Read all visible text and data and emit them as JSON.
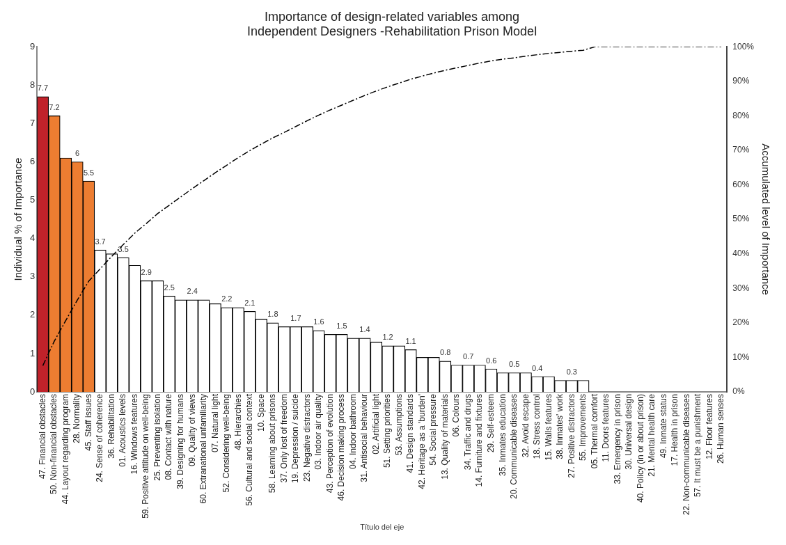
{
  "chart_data": {
    "type": "bar",
    "title": "Importance of design-related variables among\nIndependent Designers -Rehabilitation Prison Model",
    "xlabel": "Título del eje",
    "ylabel": "Individual % of Importance",
    "y2label": "Accumulated level of Importance",
    "categories": [
      "47. Financial obstacles",
      "50. Non-financial obstacles",
      "44. Layout regarding program",
      "28. Normality",
      "45. Staff issues",
      "24. Sense of coherence",
      "36. Rehabilitation",
      "01. Acoustics levels",
      "16. Windows features",
      "59. Positive attitude on well-being",
      "25. Preventing isolation",
      "08. Contact with nature",
      "39. Designing for humans",
      "09. Quality of views",
      "60. Extranational unfamiliarity",
      "07. Natural light",
      "52. Considering well-being",
      "48. Hierarchies",
      "56. Cultural and social context",
      "10. Space",
      "58. Learning about prisons",
      "37. Only lost of freedom",
      "19. Depression / suicide",
      "23. Negative distractors",
      "03. Indoor air quality",
      "43. Perception of evolution",
      "46. Decision making process",
      "04. Indoor bathroom",
      "31. Antisocial behaviour",
      "02. Artificial light",
      "51. Setting priorities",
      "53. Assumptions",
      "41. Design standards",
      "42. Heritage as a 'burden'",
      "54. Social pressure",
      "13. Quality of materials",
      "06. Colours",
      "34. Traffic and drugs",
      "14. Furniture and fixtures",
      "29. Self-esteem",
      "35. Inmates education",
      "20. Communicable diseases",
      "32. Avoid escape",
      "18. Stress control",
      "15. Walls features",
      "38. Inmates' work",
      "27. Positive distractors",
      "55. Improvements",
      "05. Thermal comfort",
      "11. Doors features",
      "33. Emergency in prison",
      "30. Universal design",
      "40. Policy (in or about prison)",
      "21. Mental health care",
      "49. Inmate status",
      "17. Health in prison",
      "22. Non-communicable diseases",
      "57. It must be a punishment",
      "12. Floor features",
      "26. Human senses"
    ],
    "series": [
      {
        "colors": [
          "#c0222a",
          "#ed7d31",
          "#ed7d31",
          "#ed7d31",
          "#ed7d31",
          "#ffffff",
          "#ffffff",
          "#ffffff",
          "#ffffff",
          "#ffffff",
          "#ffffff",
          "#ffffff",
          "#ffffff",
          "#ffffff",
          "#ffffff",
          "#ffffff",
          "#ffffff",
          "#ffffff",
          "#ffffff",
          "#ffffff",
          "#ffffff",
          "#ffffff",
          "#ffffff",
          "#ffffff",
          "#ffffff",
          "#ffffff",
          "#ffffff",
          "#ffffff",
          "#ffffff",
          "#ffffff",
          "#ffffff",
          "#ffffff",
          "#ffffff",
          "#ffffff",
          "#ffffff",
          "#ffffff",
          "#ffffff",
          "#ffffff",
          "#ffffff",
          "#ffffff",
          "#ffffff",
          "#ffffff",
          "#ffffff",
          "#ffffff",
          "#ffffff",
          "#ffffff",
          "#ffffff",
          "#ffffff",
          "#ffffff",
          "#ffffff",
          "#ffffff",
          "#ffffff",
          "#ffffff",
          "#ffffff",
          "#ffffff",
          "#ffffff",
          "#ffffff",
          "#ffffff",
          "#ffffff",
          "#ffffff"
        ],
        "values": [
          7.7,
          7.2,
          6.1,
          6.0,
          5.5,
          3.7,
          3.6,
          3.5,
          3.3,
          2.9,
          2.9,
          2.5,
          2.4,
          2.4,
          2.4,
          2.3,
          2.2,
          2.2,
          2.1,
          1.9,
          1.8,
          1.7,
          1.7,
          1.7,
          1.6,
          1.5,
          1.5,
          1.4,
          1.4,
          1.3,
          1.2,
          1.2,
          1.1,
          0.9,
          0.9,
          0.8,
          0.7,
          0.7,
          0.7,
          0.6,
          0.5,
          0.5,
          0.5,
          0.4,
          0.4,
          0.3,
          0.3,
          0.3,
          0,
          0,
          0,
          0,
          0,
          0,
          0,
          0,
          0,
          0,
          0,
          0
        ],
        "value_labels": [
          "7.7",
          "7.2",
          null,
          "6",
          "5.5",
          "3.7",
          null,
          "3.5",
          null,
          "2.9",
          null,
          "2.5",
          null,
          "2.4",
          null,
          null,
          "2.2",
          null,
          "2.1",
          null,
          "1.8",
          null,
          "1.7",
          null,
          "1.6",
          null,
          "1.5",
          null,
          "1.4",
          null,
          "1.2",
          null,
          "1.1",
          null,
          null,
          "0.8",
          null,
          "0.7",
          null,
          "0.6",
          null,
          "0.5",
          null,
          "0.4",
          null,
          null,
          "0.3",
          null,
          null,
          null,
          null,
          null,
          null,
          null,
          null,
          null,
          null,
          null,
          null,
          null
        ]
      },
      {
        "type": "line",
        "axis": "y2",
        "color": "#000000",
        "line_style": "dashed",
        "marker": "none",
        "values": [
          7.6,
          14.7,
          20.7,
          26.6,
          32.1,
          35.7,
          39.3,
          42.7,
          46.0,
          48.8,
          51.7,
          54.1,
          56.5,
          58.9,
          61.2,
          63.5,
          65.7,
          67.9,
          69.9,
          71.8,
          73.6,
          75.2,
          76.9,
          78.6,
          80.2,
          81.7,
          83.1,
          84.5,
          85.9,
          87.2,
          88.4,
          89.5,
          90.6,
          91.5,
          92.4,
          93.2,
          93.9,
          94.6,
          95.3,
          95.9,
          96.4,
          96.8,
          97.3,
          97.7,
          98.1,
          98.4,
          98.7,
          99.0,
          100,
          100,
          100,
          100,
          100,
          100,
          100,
          100,
          100,
          100,
          100,
          100
        ]
      }
    ],
    "ylim": [
      0,
      9
    ],
    "yticks": [
      0,
      1,
      2,
      3,
      4,
      5,
      6,
      7,
      8,
      9
    ],
    "y2lim": [
      0,
      100
    ],
    "y2ticks": [
      {
        "value": 0,
        "label": "0%"
      },
      {
        "value": 10,
        "label": "10%"
      },
      {
        "value": 20,
        "label": "20%"
      },
      {
        "value": 30,
        "label": "30%"
      },
      {
        "value": 40,
        "label": "40%"
      },
      {
        "value": 50,
        "label": "50%"
      },
      {
        "value": 60,
        "label": "60%"
      },
      {
        "value": 70,
        "label": "70%"
      },
      {
        "value": 80,
        "label": "80%"
      },
      {
        "value": 90,
        "label": "90%"
      },
      {
        "value": 100,
        "label": "100%"
      }
    ],
    "grid": false,
    "legend": false
  }
}
